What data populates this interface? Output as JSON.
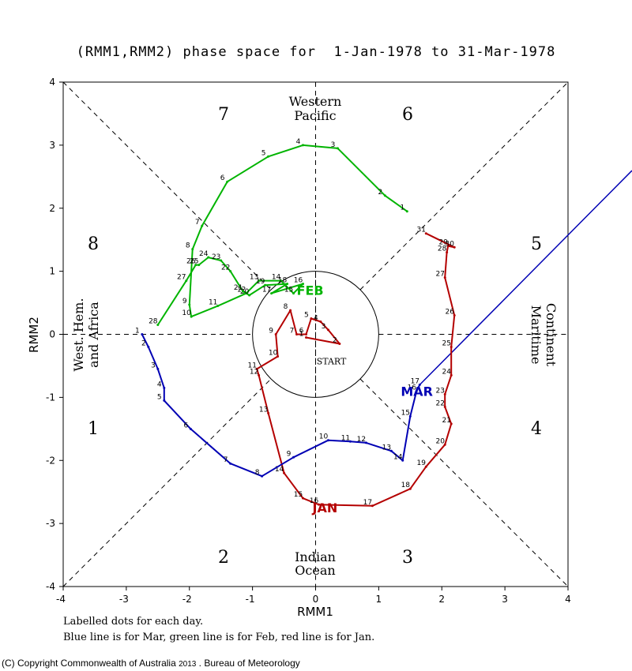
{
  "chart_data": {
    "type": "line",
    "title": "(RMM1,RMM2) phase space for  1-Jan-1978 to 31-Mar-1978",
    "xlabel": "RMM1",
    "ylabel": "RMM2",
    "xlim": [
      -4,
      4
    ],
    "ylim": [
      -4,
      4
    ],
    "x_ticks": [
      "-4",
      "-3",
      "-2",
      "-1",
      "0",
      "1",
      "2",
      "3",
      "4"
    ],
    "y_ticks": [
      "-4",
      "-3",
      "-2",
      "-1",
      "0",
      "1",
      "2",
      "3",
      "4"
    ],
    "phases": [
      "1",
      "2",
      "3",
      "4",
      "5",
      "6",
      "7",
      "8"
    ],
    "regions": {
      "top": [
        "Western",
        "Pacific"
      ],
      "bottom": [
        "Indian",
        "Ocean"
      ],
      "left": [
        "West. Hem.",
        "and Africa"
      ],
      "right": [
        "Maritime",
        "Continent"
      ]
    },
    "start_label": "START",
    "notes": [
      "Labelled dots for each day.",
      "Blue line is for Mar, green line is for Feb, red line is for Jan."
    ],
    "series": [
      {
        "name": "JAN",
        "color": "#b40000",
        "label_at": [
          -0.05,
          -2.75
        ],
        "points": [
          [
            -0.15,
            -0.05
          ],
          [
            0.38,
            -0.15
          ],
          [
            0.2,
            0.07
          ],
          [
            0.08,
            0.2
          ],
          [
            -0.07,
            0.25
          ],
          [
            -0.15,
            0.0
          ],
          [
            -0.3,
            0.0
          ],
          [
            -0.4,
            0.38
          ],
          [
            -0.63,
            0.0
          ],
          [
            -0.6,
            -0.35
          ],
          [
            -0.93,
            -0.55
          ],
          [
            -0.9,
            -0.65
          ],
          [
            -0.75,
            -1.25
          ],
          [
            -0.5,
            -2.2
          ],
          [
            -0.2,
            -2.6
          ],
          [
            0.05,
            -2.7
          ],
          [
            0.9,
            -2.72
          ],
          [
            1.5,
            -2.45
          ],
          [
            1.75,
            -2.1
          ],
          [
            2.05,
            -1.75
          ],
          [
            2.15,
            -1.42
          ],
          [
            2.05,
            -1.15
          ],
          [
            2.05,
            -0.95
          ],
          [
            2.15,
            -0.65
          ],
          [
            2.15,
            -0.2
          ],
          [
            2.2,
            0.3
          ],
          [
            2.05,
            0.9
          ],
          [
            2.08,
            1.3
          ],
          [
            2.1,
            1.4
          ],
          [
            2.2,
            1.38
          ],
          [
            1.75,
            1.6
          ]
        ]
      },
      {
        "name": "FEB",
        "color": "#00b400",
        "label_at": [
          -0.3,
          0.7
        ],
        "points": [
          [
            1.45,
            1.95
          ],
          [
            1.1,
            2.2
          ],
          [
            0.35,
            2.95
          ],
          [
            -0.2,
            3.0
          ],
          [
            -0.75,
            2.82
          ],
          [
            -1.4,
            2.42
          ],
          [
            -1.8,
            1.72
          ],
          [
            -1.95,
            1.35
          ],
          [
            -2.0,
            0.47
          ],
          [
            -1.97,
            0.28
          ],
          [
            -1.55,
            0.45
          ],
          [
            -1.1,
            0.65
          ],
          [
            -0.9,
            0.85
          ],
          [
            -0.55,
            0.85
          ],
          [
            -0.35,
            0.65
          ],
          [
            -0.2,
            0.8
          ],
          [
            -0.7,
            0.65
          ],
          [
            -0.45,
            0.8
          ],
          [
            -0.8,
            0.78
          ],
          [
            -1.05,
            0.62
          ],
          [
            -1.15,
            0.68
          ],
          [
            -1.35,
            1.0
          ],
          [
            -1.5,
            1.17
          ],
          [
            -1.7,
            1.22
          ],
          [
            -1.85,
            1.1
          ],
          [
            -1.9,
            1.1
          ],
          [
            -2.05,
            0.85
          ],
          [
            -2.5,
            0.15
          ]
        ]
      },
      {
        "name": "MAR",
        "color": "#0000b4",
        "label_at": [
          1.35,
          -0.9
        ],
        "points": [
          [
            -2.75,
            0.0
          ],
          [
            -2.65,
            -0.2
          ],
          [
            -2.5,
            -0.55
          ],
          [
            -2.4,
            -0.85
          ],
          [
            -2.4,
            -1.05
          ],
          [
            -1.98,
            -1.5
          ],
          [
            -1.35,
            -2.05
          ],
          [
            -0.85,
            -2.25
          ],
          [
            -0.35,
            -1.95
          ],
          [
            0.2,
            -1.68
          ],
          [
            0.55,
            -1.7
          ],
          [
            0.8,
            -1.72
          ],
          [
            1.2,
            -1.85
          ],
          [
            1.38,
            -2.0
          ],
          [
            1.5,
            -1.3
          ],
          [
            1.6,
            -0.9
          ],
          [
            1.65,
            -0.8
          ]
        ]
      }
    ]
  }
}
